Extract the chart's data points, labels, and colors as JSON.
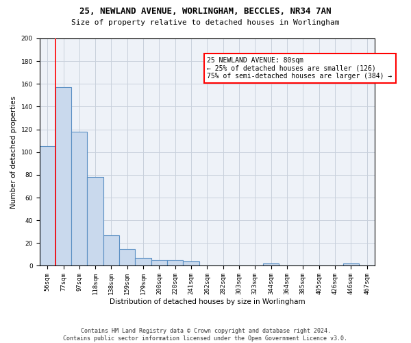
{
  "title1": "25, NEWLAND AVENUE, WORLINGHAM, BECCLES, NR34 7AN",
  "title2": "Size of property relative to detached houses in Worlingham",
  "xlabel": "Distribution of detached houses by size in Worlingham",
  "ylabel": "Number of detached properties",
  "categories": [
    "56sqm",
    "77sqm",
    "97sqm",
    "118sqm",
    "138sqm",
    "159sqm",
    "179sqm",
    "200sqm",
    "220sqm",
    "241sqm",
    "262sqm",
    "282sqm",
    "303sqm",
    "323sqm",
    "344sqm",
    "364sqm",
    "385sqm",
    "405sqm",
    "426sqm",
    "446sqm",
    "467sqm"
  ],
  "values": [
    105,
    157,
    118,
    78,
    27,
    15,
    7,
    5,
    5,
    4,
    0,
    0,
    0,
    0,
    2,
    0,
    0,
    0,
    0,
    2,
    0
  ],
  "bar_color": "#c9d9ed",
  "bar_edge_color": "#5a8fc3",
  "bar_linewidth": 0.8,
  "red_line_x": 0.5,
  "annotation_text": "25 NEWLAND AVENUE: 80sqm\n← 25% of detached houses are smaller (126)\n75% of semi-detached houses are larger (384) →",
  "annotation_box_color": "white",
  "annotation_box_edge_color": "red",
  "ylim": [
    0,
    200
  ],
  "yticks": [
    0,
    20,
    40,
    60,
    80,
    100,
    120,
    140,
    160,
    180,
    200
  ],
  "grid_color": "#c8d0dc",
  "bg_color": "#eef2f8",
  "footer": "Contains HM Land Registry data © Crown copyright and database right 2024.\nContains public sector information licensed under the Open Government Licence v3.0.",
  "title_fontsize": 9,
  "subtitle_fontsize": 8,
  "xlabel_fontsize": 7.5,
  "ylabel_fontsize": 7.5,
  "tick_fontsize": 6.5,
  "annotation_fontsize": 7,
  "footer_fontsize": 6
}
